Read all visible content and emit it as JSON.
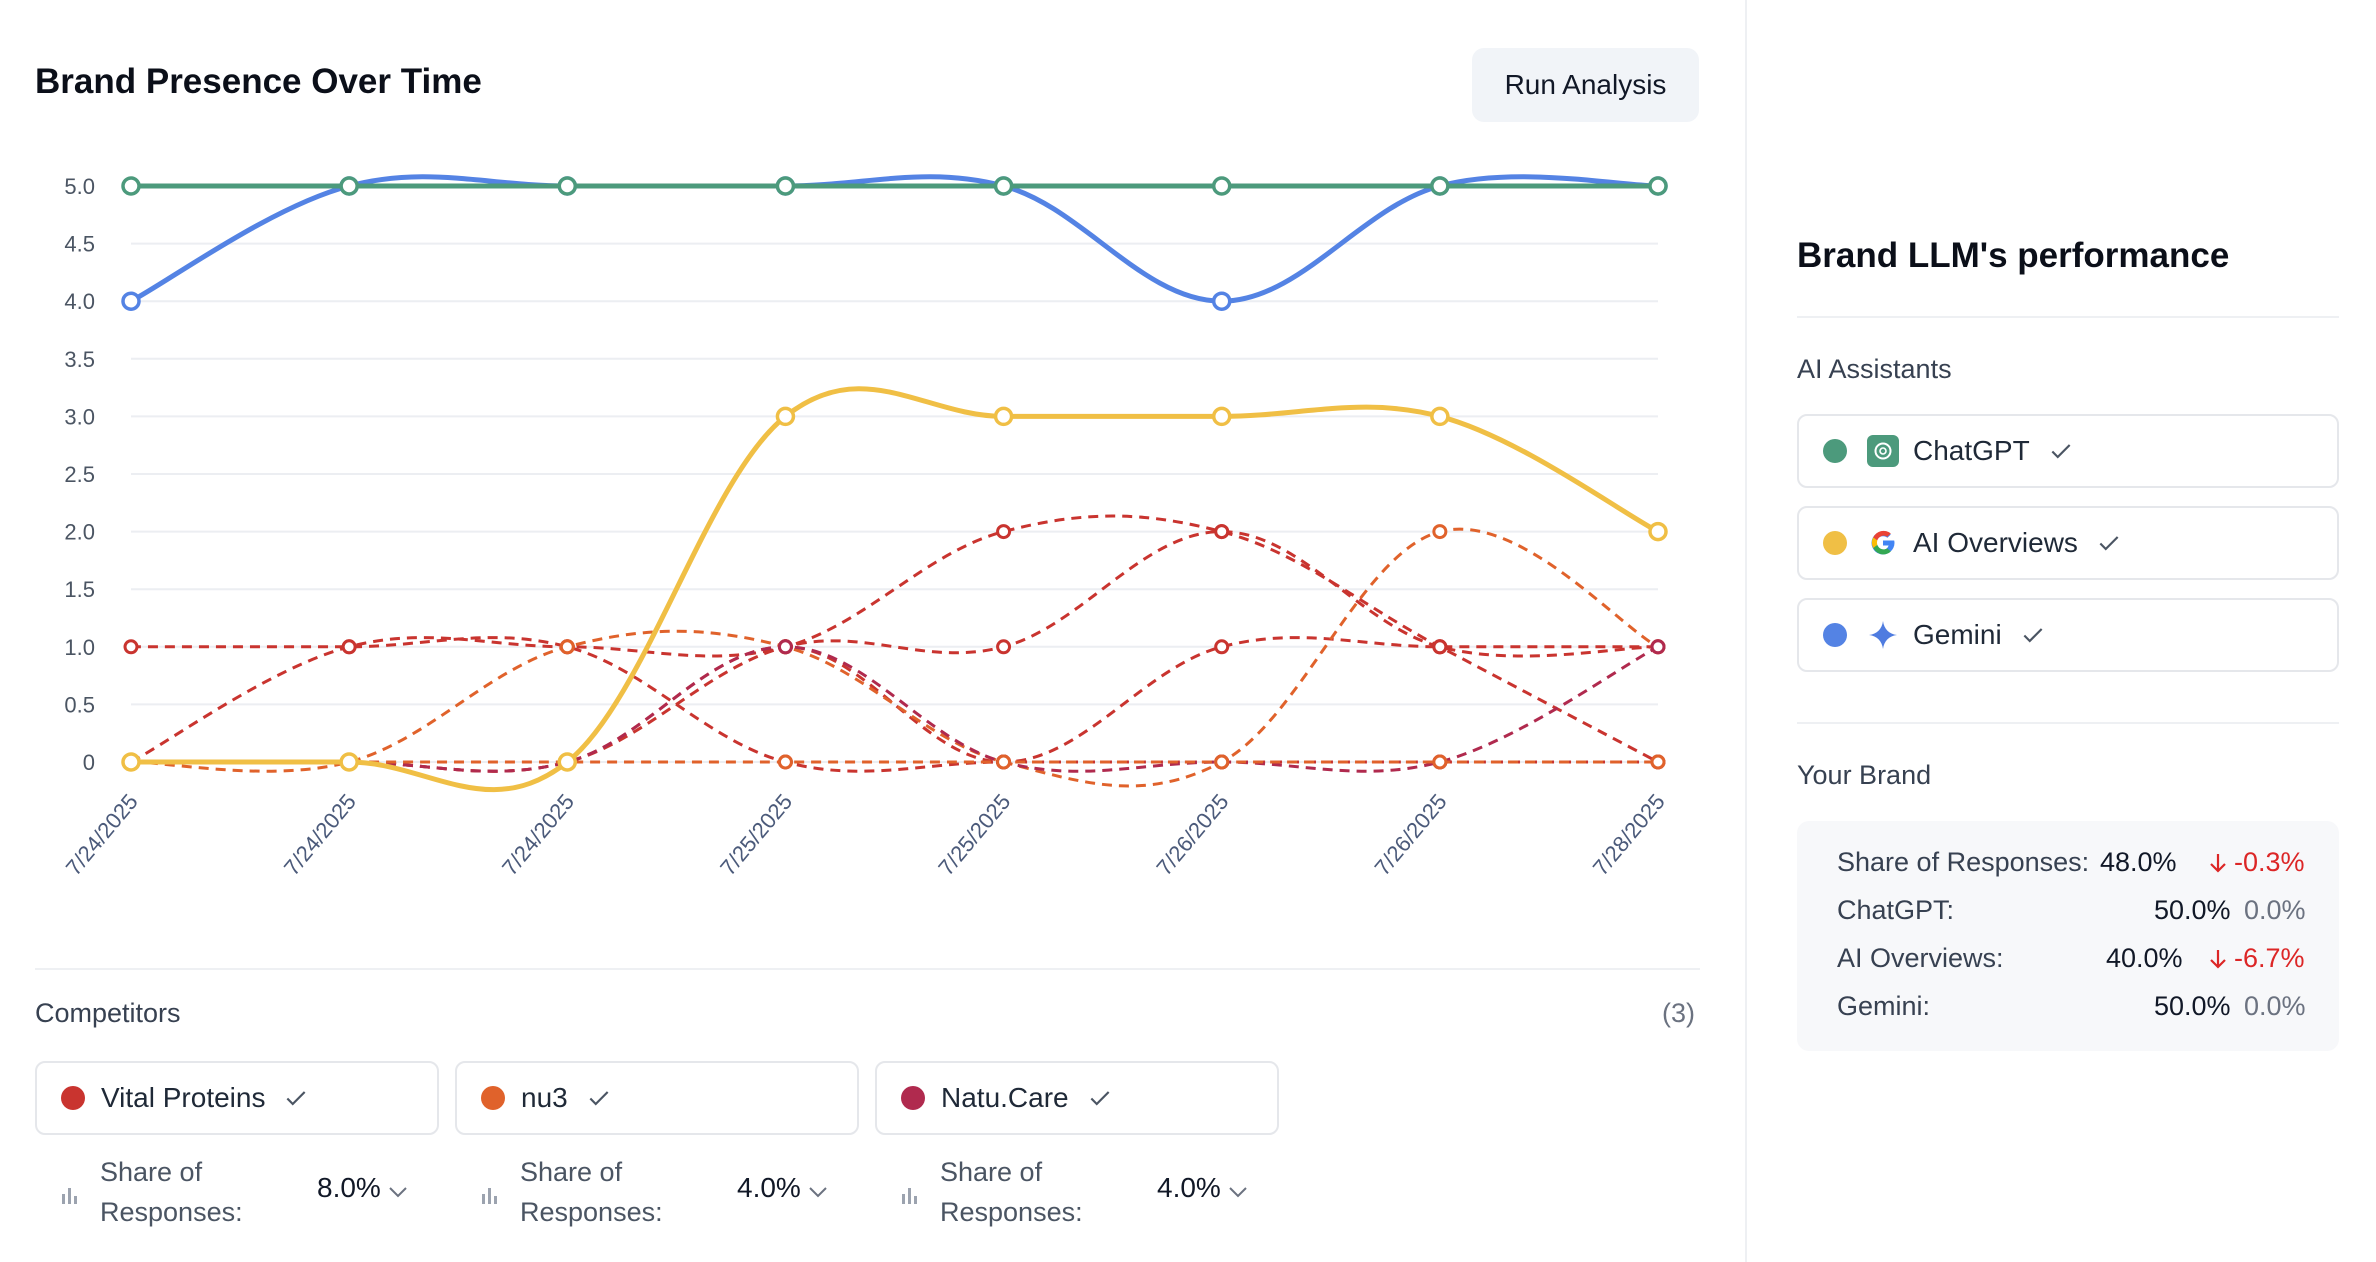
{
  "header": {
    "title": "Brand Presence Over Time",
    "run_button": "Run Analysis"
  },
  "chart_data": {
    "type": "line",
    "title": "Brand Presence Over Time",
    "x": [
      "7/24/2025",
      "7/24/2025",
      "7/24/2025",
      "7/25/2025",
      "7/25/2025",
      "7/26/2025",
      "7/26/2025",
      "7/28/2025"
    ],
    "ylim": [
      0,
      5
    ],
    "yticks": [
      "0",
      "0.5",
      "1.0",
      "1.5",
      "2.0",
      "2.5",
      "3.0",
      "3.5",
      "4.0",
      "4.5",
      "5.0"
    ],
    "grid": true,
    "series": [
      {
        "key": "chatgpt",
        "values": [
          5,
          5,
          5,
          5,
          5,
          5,
          5,
          5
        ],
        "color": "#4c9a7c",
        "style": "solid"
      },
      {
        "key": "gemini",
        "values": [
          4,
          5,
          5,
          5,
          5,
          4,
          5,
          5
        ],
        "color": "#5483e4",
        "style": "solid"
      },
      {
        "key": "ai_overviews",
        "values": [
          0,
          0,
          0,
          3,
          3,
          3,
          3,
          2
        ],
        "color": "#f0bf45",
        "style": "solid"
      },
      {
        "key": "vital_proteins_1",
        "values": [
          1,
          1,
          1,
          0,
          0,
          0,
          0,
          0
        ],
        "color": "#c9342f",
        "style": "dashed"
      },
      {
        "key": "vital_proteins_2",
        "values": [
          0,
          1,
          1,
          1,
          2,
          2,
          1,
          0
        ],
        "color": "#c9342f",
        "style": "dashed"
      },
      {
        "key": "vital_proteins_3",
        "values": [
          0,
          0,
          0,
          1,
          1,
          2,
          1,
          1
        ],
        "color": "#c9342f",
        "style": "dashed"
      },
      {
        "key": "vital_proteins_4",
        "values": [
          0,
          0,
          0,
          1,
          0,
          1,
          1,
          1
        ],
        "color": "#c9342f",
        "style": "dashed"
      },
      {
        "key": "nu3",
        "values": [
          0,
          0,
          1,
          1,
          0,
          0,
          2,
          1
        ],
        "color": "#e0622b",
        "style": "dashed"
      },
      {
        "key": "natu_care",
        "values": [
          0,
          0,
          0,
          1,
          0,
          0,
          0,
          1
        ],
        "color": "#b02a4e",
        "style": "dashed"
      },
      {
        "key": "flat_competitor",
        "values": [
          0,
          0,
          0,
          0,
          0,
          0,
          0,
          0
        ],
        "color": "#e0622b",
        "style": "dashed"
      }
    ]
  },
  "competitors": {
    "label": "Competitors",
    "count": "(3)",
    "items": [
      {
        "name": "Vital Proteins",
        "color": "#c9342f",
        "share_label": "Share of Responses:",
        "share_value": "8.0%"
      },
      {
        "name": "nu3",
        "color": "#e0622b",
        "share_label": "Share of Responses:",
        "share_value": "4.0%"
      },
      {
        "name": "Natu.Care",
        "color": "#b02a4e",
        "share_label": "Share of Responses:",
        "share_value": "4.0%"
      }
    ]
  },
  "side": {
    "title": "Brand LLM's performance",
    "assistants_label": "AI Assistants",
    "assistants": [
      {
        "name": "ChatGPT",
        "color": "#4c9a7c",
        "icon": "chatgpt-icon"
      },
      {
        "name": "AI Overviews",
        "color": "#f0bf45",
        "icon": "google-icon"
      },
      {
        "name": "Gemini",
        "color": "#5483e4",
        "icon": "gemini-sparkle-icon"
      }
    ],
    "your_brand_label": "Your Brand",
    "brand_rows": [
      {
        "label": "Share of Responses:",
        "value": "48.0%",
        "change": "-0.3%",
        "trend": "down"
      },
      {
        "label": "ChatGPT:",
        "value": "50.0%",
        "change": "0.0%",
        "trend": "flat"
      },
      {
        "label": "AI Overviews:",
        "value": "40.0%",
        "change": "-6.7%",
        "trend": "down"
      },
      {
        "label": "Gemini:",
        "value": "50.0%",
        "change": "0.0%",
        "trend": "flat"
      }
    ]
  }
}
